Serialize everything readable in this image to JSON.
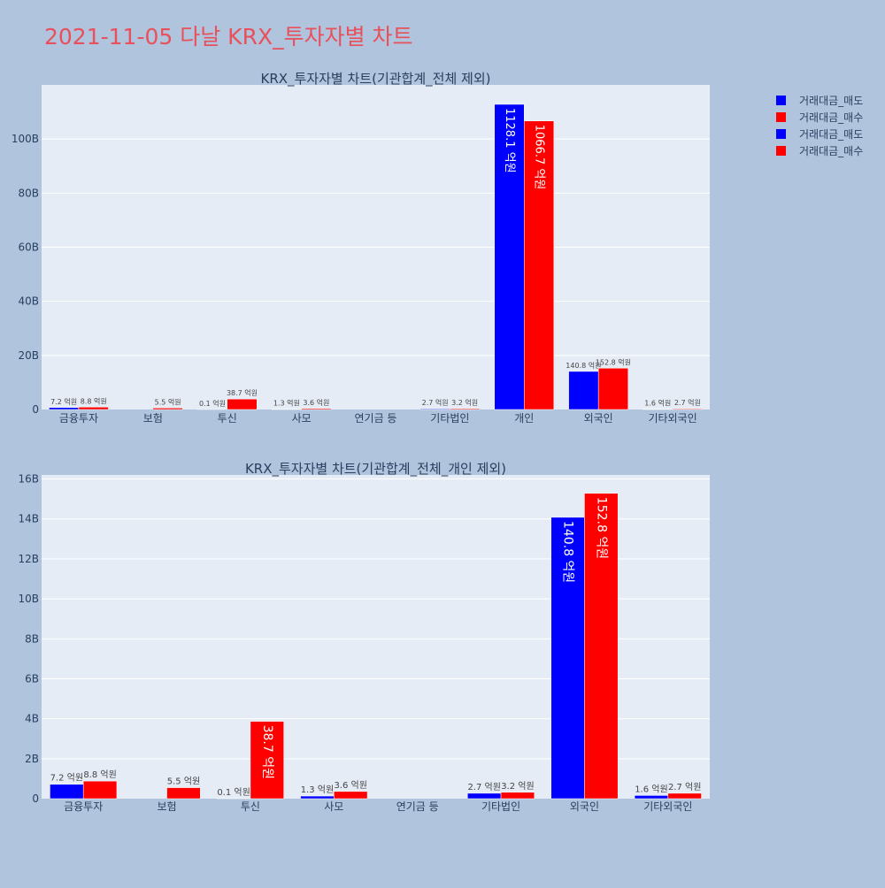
{
  "page_title": "2021-11-05 다날 KRX_투자자별 차트",
  "legend": {
    "items": [
      {
        "label": "거래대금_매도",
        "color": "#0000ff"
      },
      {
        "label": "거래대금_매수",
        "color": "#ff0000"
      },
      {
        "label": "거래대금_매도",
        "color": "#0000ff"
      },
      {
        "label": "거래대금_매수",
        "color": "#ff0000"
      }
    ]
  },
  "chart_data": [
    {
      "type": "bar",
      "title": "KRX_투자자별 차트(기관합계_전체 제외)",
      "categories": [
        "금융투자",
        "보험",
        "투신",
        "사모",
        "연기금 등",
        "기타법인",
        "개인",
        "외국인",
        "기타외국인"
      ],
      "ylim": [
        0,
        120
      ],
      "yticks": [
        0,
        20,
        40,
        60,
        80,
        100
      ],
      "ytick_labels": [
        "0",
        "20B",
        "40B",
        "60B",
        "80B",
        "100B"
      ],
      "grid": true,
      "series": [
        {
          "name": "거래대금_매도",
          "color": "#0000ff",
          "values": [
            0.72,
            0,
            0.01,
            0.13,
            0,
            0.27,
            112.81,
            14.08,
            0.16
          ],
          "labels": [
            "7.2 억원",
            "",
            "0.1 억원",
            "1.3 억원",
            "",
            "2.7 억원",
            "1128.1 억원",
            "140.8 억원",
            "1.6 억원"
          ]
        },
        {
          "name": "거래대금_매수",
          "color": "#ff0000",
          "values": [
            0.88,
            0.55,
            3.87,
            0.36,
            0,
            0.32,
            106.67,
            15.28,
            0.27
          ],
          "labels": [
            "8.8 억원",
            "5.5 억원",
            "38.7 억원",
            "3.6 억원",
            "",
            "3.2 억원",
            "1066.7 억원",
            "152.8 억원",
            "2.7 억원"
          ]
        }
      ]
    },
    {
      "type": "bar",
      "title": "KRX_투자자별 차트(기관합계_전체_개인 제외)",
      "categories": [
        "금융투자",
        "보험",
        "투신",
        "사모",
        "연기금 등",
        "기타법인",
        "외국인",
        "기타외국인"
      ],
      "ylim": [
        0,
        16.2
      ],
      "yticks": [
        0,
        2,
        4,
        6,
        8,
        10,
        12,
        14,
        16
      ],
      "ytick_labels": [
        "0",
        "2B",
        "4B",
        "6B",
        "8B",
        "10B",
        "12B",
        "14B",
        "16B"
      ],
      "grid": true,
      "series": [
        {
          "name": "거래대금_매도",
          "color": "#0000ff",
          "values": [
            0.72,
            0,
            0.01,
            0.13,
            0,
            0.27,
            14.08,
            0.16
          ],
          "labels": [
            "7.2 억원",
            "",
            "0.1 억원",
            "1.3 억원",
            "",
            "2.7 억원",
            "140.8 억원",
            "1.6 억원"
          ]
        },
        {
          "name": "거래대금_매수",
          "color": "#ff0000",
          "values": [
            0.88,
            0.55,
            3.87,
            0.36,
            0,
            0.32,
            15.28,
            0.27
          ],
          "labels": [
            "8.8 억원",
            "5.5 억원",
            "38.7 억원",
            "3.6 억원",
            "",
            "3.2 억원",
            "152.8 억원",
            "2.7 억원"
          ]
        }
      ]
    }
  ]
}
